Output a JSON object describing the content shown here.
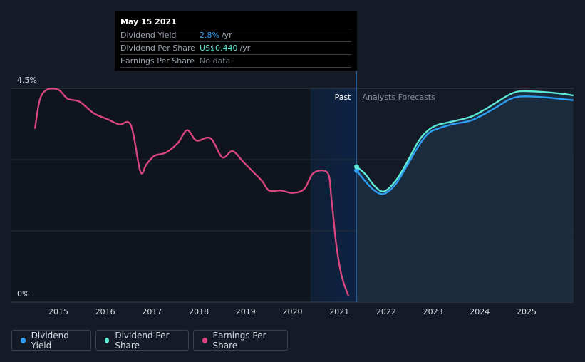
{
  "tooltip": {
    "date": "May 15 2021",
    "rows": [
      {
        "label": "Dividend Yield",
        "value": "2.8%",
        "unit": "/yr"
      },
      {
        "label": "Dividend Per Share",
        "value": "US$0.440",
        "unit": "/yr"
      },
      {
        "label": "Earnings Per Share",
        "value": "No data",
        "unit": ""
      }
    ]
  },
  "regions": {
    "past": "Past",
    "forecast": "Analysts Forecasts"
  },
  "legend": [
    {
      "label": "Dividend Yield",
      "color": "#2e9ef4"
    },
    {
      "label": "Dividend Per Share",
      "color": "#5de8d6"
    },
    {
      "label": "Earnings Per Share",
      "color": "#d8457f"
    }
  ],
  "chart_data": {
    "type": "line",
    "y_tick_labels": [
      "4.5%",
      "0%"
    ],
    "ylim": [
      0,
      4.5
    ],
    "xlim": [
      2014.0,
      2026.0
    ],
    "x_tick_labels": [
      "2015",
      "2016",
      "2017",
      "2018",
      "2019",
      "2020",
      "2021",
      "2022",
      "2023",
      "2024",
      "2025"
    ],
    "past_forecast_divider_x": 2021.37,
    "grid": true,
    "legend_position": "bottom-left",
    "series": [
      {
        "name": "Earnings Per Share",
        "color": "#d8457f",
        "x": [
          2014.5,
          2014.6,
          2014.75,
          2015.0,
          2015.2,
          2015.45,
          2015.75,
          2016.05,
          2016.3,
          2016.55,
          2016.75,
          2016.88,
          2017.05,
          2017.3,
          2017.55,
          2017.75,
          2017.95,
          2018.25,
          2018.5,
          2018.72,
          2018.95,
          2019.15,
          2019.35,
          2019.5,
          2019.75,
          2020.0,
          2020.25,
          2020.45,
          2020.75,
          2020.83,
          2020.93,
          2021.05,
          2021.2
        ],
        "y": [
          3.65,
          4.25,
          4.47,
          4.47,
          4.28,
          4.22,
          3.98,
          3.85,
          3.74,
          3.72,
          2.75,
          2.9,
          3.08,
          3.15,
          3.35,
          3.62,
          3.4,
          3.45,
          3.05,
          3.18,
          2.95,
          2.75,
          2.55,
          2.35,
          2.35,
          2.3,
          2.38,
          2.72,
          2.72,
          2.2,
          1.25,
          0.55,
          0.12
        ]
      },
      {
        "name": "Dividend Yield",
        "color": "#2e9ef4",
        "x": [
          2021.37,
          2021.55,
          2021.75,
          2021.95,
          2022.2,
          2022.45,
          2022.7,
          2022.9,
          2023.1,
          2023.4,
          2023.8,
          2024.1,
          2024.35,
          2024.6,
          2024.8,
          2025.0,
          2025.4,
          2025.8,
          2026.0
        ],
        "y": [
          2.77,
          2.55,
          2.35,
          2.28,
          2.48,
          2.88,
          3.3,
          3.55,
          3.65,
          3.74,
          3.82,
          3.96,
          4.1,
          4.25,
          4.32,
          4.33,
          4.31,
          4.27,
          4.25
        ]
      },
      {
        "name": "Dividend Per Share",
        "color": "#5de8d6",
        "x": [
          2021.37,
          2021.55,
          2021.75,
          2021.95,
          2022.2,
          2022.45,
          2022.7,
          2022.9,
          2023.1,
          2023.4,
          2023.8,
          2024.1,
          2024.35,
          2024.6,
          2024.8,
          2025.0,
          2025.4,
          2025.8,
          2026.0
        ],
        "y": [
          2.85,
          2.7,
          2.45,
          2.33,
          2.55,
          2.95,
          3.4,
          3.62,
          3.73,
          3.8,
          3.9,
          4.05,
          4.2,
          4.35,
          4.43,
          4.44,
          4.42,
          4.38,
          4.35
        ]
      }
    ]
  }
}
